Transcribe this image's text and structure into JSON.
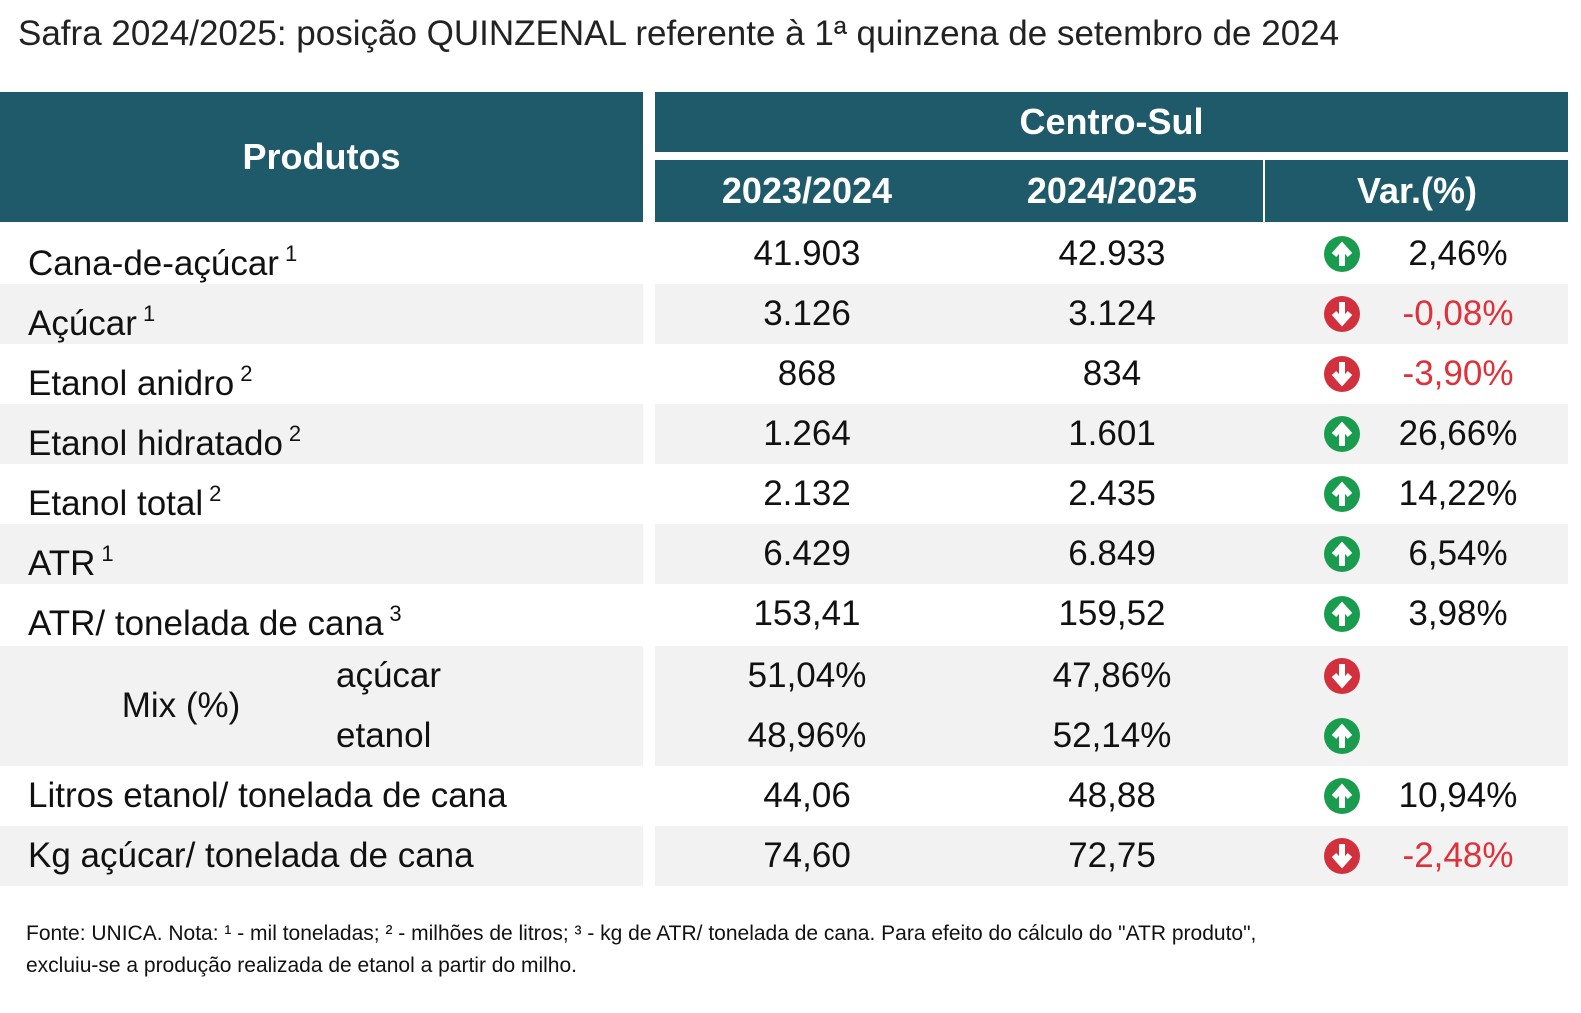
{
  "title": "Safra 2024/2025: posição QUINZENAL referente à 1ª quinzena de setembro de 2024",
  "table": {
    "header": {
      "products": "Produtos",
      "region": "Centro-Sul",
      "columns": [
        "2023/2024",
        "2024/2025",
        "Var.(%)"
      ]
    },
    "rows": [
      {
        "label": "Cana-de-açúcar",
        "note": "1",
        "values": [
          "41.903",
          "42.933"
        ],
        "var": "2,46%",
        "trend": "up"
      },
      {
        "label": "Açúcar",
        "note": "1",
        "values": [
          "3.126",
          "3.124"
        ],
        "var": "-0,08%",
        "trend": "down"
      },
      {
        "label": "Etanol anidro",
        "note": "2",
        "values": [
          "868",
          "834"
        ],
        "var": "-3,90%",
        "trend": "down"
      },
      {
        "label": "Etanol hidratado",
        "note": "2",
        "values": [
          "1.264",
          "1.601"
        ],
        "var": "26,66%",
        "trend": "up"
      },
      {
        "label": "Etanol total",
        "note": "2",
        "values": [
          "2.132",
          "2.435"
        ],
        "var": "14,22%",
        "trend": "up"
      },
      {
        "label": "ATR",
        "note": "1",
        "values": [
          "6.429",
          "6.849"
        ],
        "var": "6,54%",
        "trend": "up"
      },
      {
        "label": "ATR/ tonelada de cana",
        "note": "3",
        "values": [
          "153,41",
          "159,52"
        ],
        "var": "3,98%",
        "trend": "up"
      }
    ],
    "mix": {
      "label": "Mix (%)",
      "rows": [
        {
          "label": "açúcar",
          "values": [
            "51,04%",
            "47,86%"
          ],
          "trend": "down"
        },
        {
          "label": "etanol",
          "values": [
            "48,96%",
            "52,14%"
          ],
          "trend": "up"
        }
      ]
    },
    "rows_after": [
      {
        "label": "Litros etanol/ tonelada de cana",
        "values": [
          "44,06",
          "48,88"
        ],
        "var": "10,94%",
        "trend": "up"
      },
      {
        "label": "Kg açúcar/ tonelada de cana",
        "values": [
          "74,60",
          "72,75"
        ],
        "var": "-2,48%",
        "trend": "down"
      }
    ]
  },
  "footnote": [
    "Fonte: UNICA. Nota: ¹ - mil toneladas; ² - milhões de litros; ³ - kg de ATR/ tonelada de cana. Para efeito do cálculo do \"ATR produto\",",
    "excluiu-se a produção realizada de etanol a partir do milho."
  ]
}
